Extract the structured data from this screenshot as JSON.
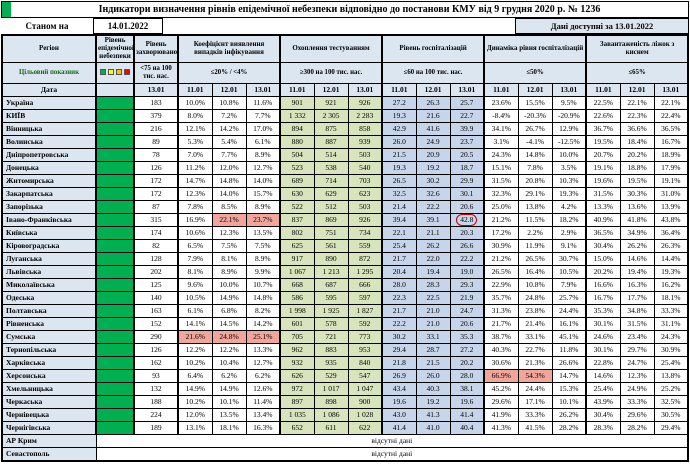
{
  "title": "Індикатори визначення рівнів епідемічної небезпеки відповідно до постанови КМУ від 9 грудня 2020 р. № 1236",
  "meta": {
    "as_of_label": "Станом на",
    "as_of_date": "14.01.2022",
    "available_label": "Дані доступні за 13.01.2022"
  },
  "colors": {
    "header_bg": "#dce6f1",
    "level_green": "#00b050",
    "testing_bg": "#d8e4bc",
    "hosp_bg": "#c7d5ea",
    "red_bg": "#f2a59b",
    "legend": [
      "#00b050",
      "#ffff00",
      "#ffc000",
      "#ff0000"
    ]
  },
  "header": {
    "region_label": "Регіон",
    "level_label": "Рівень епідемічної небезпеки",
    "target_label": "Цільовий показник",
    "date_label": "Дата",
    "groups": [
      {
        "title": "Рівень захворюваності",
        "threshold": "<75 на 100 тис. нас.",
        "dates": [
          "13.01"
        ]
      },
      {
        "title": "Коефіцієнт виявлення випадків інфікування",
        "threshold": "≤20% / <4%",
        "dates": [
          "11.01",
          "12.01",
          "13.01"
        ]
      },
      {
        "title": "Охоплення тестуванням",
        "threshold": "≥300 на 100 тис. нас.",
        "dates": [
          "11.01",
          "12.01",
          "13.01"
        ]
      },
      {
        "title": "Рівень госпіталізацій",
        "threshold": "≤60 на 100 тис. нас.",
        "dates": [
          "11.01",
          "12.01",
          "13.01"
        ]
      },
      {
        "title": "Динаміка рівня госпіталізацій",
        "threshold": "≤50%",
        "dates": [
          "11.01",
          "12.01",
          "13.01"
        ]
      },
      {
        "title": "Завантаженість ліжок з киснем",
        "threshold": "≤65%",
        "dates": [
          "11.01",
          "12.01",
          "13.01"
        ]
      }
    ]
  },
  "no_data_label": "відсутні дані",
  "chart_data": {
    "type": "table",
    "columns": [
      "Регіон",
      "Рівень епідемічної небезпеки",
      "Рівень захворюваності 13.01",
      "Коефіцієнт виявлення 11.01",
      "Коефіцієнт виявлення 12.01",
      "Коефіцієнт виявлення 13.01",
      "Охоплення тестуванням 11.01",
      "Охоплення тестуванням 12.01",
      "Охоплення тестуванням 13.01",
      "Рівень госпіталізацій 11.01",
      "Рівень госпіталізацій 12.01",
      "Рівень госпіталізацій 13.01",
      "Динаміка госпіталізацій 11.01",
      "Динаміка госпіталізацій 12.01",
      "Динаміка госпіталізацій 13.01",
      "Завантаженість ліжок 11.01",
      "Завантаженість ліжок 12.01",
      "Завантаженість ліжок 13.01"
    ],
    "rows": [
      {
        "name": "Україна",
        "level": "green",
        "v": [
          "183",
          "10.0%",
          "10.8%",
          "11.6%",
          "901",
          "921",
          "926",
          "27.2",
          "26.3",
          "25.7",
          "23.6%",
          "15.5%",
          "9.5%",
          "22.5%",
          "22.1%",
          "22.1%"
        ]
      },
      {
        "name": "КИЇВ",
        "level": "green",
        "v": [
          "379",
          "8.0%",
          "7.2%",
          "7.7%",
          "1 332",
          "2 305",
          "2 283",
          "19.3",
          "21.6",
          "22.7",
          "-8.4%",
          "-20.3%",
          "-20.9%",
          "22.6%",
          "22.3%",
          "22.4%"
        ]
      },
      {
        "name": "Вінницька",
        "level": "green",
        "v": [
          "216",
          "12.1%",
          "14.2%",
          "17.0%",
          "894",
          "875",
          "858",
          "42.9",
          "41.6",
          "39.9",
          "34.1%",
          "26.7%",
          "12.9%",
          "36.7%",
          "36.6%",
          "36.5%"
        ]
      },
      {
        "name": "Волинська",
        "level": "green",
        "v": [
          "89",
          "5.3%",
          "5.4%",
          "6.1%",
          "880",
          "887",
          "939",
          "26.0",
          "24.9",
          "23.7",
          "3.1%",
          "-4.1%",
          "-12.5%",
          "19.5%",
          "18.4%",
          "16.7%"
        ]
      },
      {
        "name": "Дніпропетровська",
        "level": "green",
        "v": [
          "78",
          "7.0%",
          "7.7%",
          "8.9%",
          "504",
          "514",
          "503",
          "21.5",
          "20.9",
          "20.5",
          "24.3%",
          "14.8%",
          "10.0%",
          "20.7%",
          "20.2%",
          "18.9%"
        ]
      },
      {
        "name": "Донецька",
        "level": "green",
        "v": [
          "126",
          "11.2%",
          "12.0%",
          "12.7%",
          "523",
          "538",
          "540",
          "19.3",
          "19.2",
          "18.7",
          "15.1%",
          "7.8%",
          "3.5%",
          "19.1%",
          "18.8%",
          "17.9%"
        ]
      },
      {
        "name": "Житомирська",
        "level": "green",
        "v": [
          "172",
          "14.7%",
          "14.8%",
          "14.0%",
          "689",
          "714",
          "703",
          "26.5",
          "30.2",
          "29.9",
          "31.5%",
          "20.8%",
          "10.3%",
          "19.6%",
          "19.5%",
          "19.1%"
        ]
      },
      {
        "name": "Закарпатська",
        "level": "green",
        "v": [
          "172",
          "12.3%",
          "14.0%",
          "15.7%",
          "630",
          "629",
          "623",
          "32.5",
          "32.6",
          "30.1",
          "32.3%",
          "29.1%",
          "19.3%",
          "31.5%",
          "30.3%",
          "31.0%"
        ]
      },
      {
        "name": "Запорізька",
        "level": "green",
        "v": [
          "87",
          "7.8%",
          "8.5%",
          "8.9%",
          "522",
          "512",
          "503",
          "21.4",
          "22.2",
          "20.6",
          "25.0%",
          "13.8%",
          "4.2%",
          "13.3%",
          "13.6%",
          "13.9%"
        ]
      },
      {
        "name": "Івано-Франківська",
        "level": "green",
        "v": [
          "315",
          "16.9%",
          "22.1%",
          "23.7%",
          "837",
          "869",
          "926",
          "39.4",
          "39.1",
          "42.8",
          "21.2%",
          "11.5%",
          "18.2%",
          "40.9%",
          "41.8%",
          "43.8%"
        ],
        "hl": [
          2,
          3
        ],
        "box": [
          9
        ]
      },
      {
        "name": "Київська",
        "level": "green",
        "v": [
          "174",
          "10.6%",
          "12.3%",
          "13.5%",
          "802",
          "751",
          "734",
          "22.1",
          "21.1",
          "20.3",
          "17.2%",
          "2.2%",
          "2.9%",
          "36.5%",
          "34.9%",
          "36.4%"
        ]
      },
      {
        "name": "Кіровоградська",
        "level": "green",
        "v": [
          "82",
          "6.5%",
          "7.5%",
          "7.5%",
          "625",
          "561",
          "559",
          "25.4",
          "26.2",
          "26.6",
          "30.9%",
          "11.9%",
          "9.1%",
          "30.4%",
          "26.2%",
          "26.3%"
        ]
      },
      {
        "name": "Луганська",
        "level": "green",
        "v": [
          "128",
          "7.9%",
          "8.1%",
          "8.9%",
          "917",
          "890",
          "872",
          "21.7",
          "22.0",
          "22.2",
          "21.2%",
          "26.5%",
          "30.7%",
          "15.0%",
          "14.6%",
          "14.4%"
        ]
      },
      {
        "name": "Львівська",
        "level": "green",
        "v": [
          "202",
          "8.1%",
          "8.9%",
          "9.9%",
          "1 067",
          "1 213",
          "1 295",
          "20.4",
          "19.4",
          "19.0",
          "26.5%",
          "16.4%",
          "10.5%",
          "20.2%",
          "19.4%",
          "19.3%"
        ]
      },
      {
        "name": "Миколаївська",
        "level": "green",
        "v": [
          "125",
          "9.6%",
          "10.0%",
          "10.7%",
          "668",
          "687",
          "666",
          "28.0",
          "28.3",
          "29.3",
          "22.9%",
          "10.8%",
          "7.9%",
          "16.6%",
          "16.3%",
          "16.2%"
        ]
      },
      {
        "name": "Одеська",
        "level": "green",
        "v": [
          "140",
          "10.5%",
          "14.9%",
          "14.8%",
          "586",
          "595",
          "597",
          "22.3",
          "22.5",
          "21.9",
          "35.7%",
          "24.8%",
          "25.7%",
          "16.7%",
          "17.7%",
          "18.1%"
        ]
      },
      {
        "name": "Полтавська",
        "level": "green",
        "v": [
          "163",
          "6.1%",
          "6.8%",
          "8.2%",
          "1 998",
          "1 925",
          "1 827",
          "21.7",
          "21.0",
          "24.7",
          "31.3%",
          "23.8%",
          "24.4%",
          "35.3%",
          "34.8%",
          "33.3%"
        ]
      },
      {
        "name": "Рівненська",
        "level": "green",
        "v": [
          "152",
          "14.1%",
          "14.5%",
          "14.2%",
          "601",
          "578",
          "592",
          "22.2",
          "21.0",
          "20.6",
          "21.7%",
          "21.4%",
          "16.1%",
          "30.1%",
          "31.5%",
          "31.1%"
        ]
      },
      {
        "name": "Сумська",
        "level": "green",
        "v": [
          "290",
          "21.6%",
          "24.8%",
          "25.1%",
          "705",
          "721",
          "773",
          "30.2",
          "33.1",
          "35.3",
          "38.7%",
          "33.1%",
          "45.1%",
          "24.6%",
          "23.4%",
          "24.3%"
        ],
        "hl": [
          1,
          2,
          3
        ]
      },
      {
        "name": "Тернопільська",
        "level": "green",
        "v": [
          "126",
          "12.2%",
          "12.2%",
          "13.3%",
          "962",
          "883",
          "953",
          "29.4",
          "28.7",
          "27.2",
          "40.3%",
          "22.7%",
          "11.8%",
          "30.1%",
          "29.7%",
          "30.9%"
        ]
      },
      {
        "name": "Харківська",
        "level": "green",
        "v": [
          "162",
          "10.2%",
          "10.4%",
          "12.7%",
          "932",
          "935",
          "840",
          "21.8",
          "21.5",
          "20.2",
          "30.6%",
          "21.3%",
          "26.6%",
          "22.8%",
          "24.7%",
          "25.4%"
        ]
      },
      {
        "name": "Херсонська",
        "level": "green",
        "v": [
          "93",
          "6.4%",
          "6.2%",
          "6.2%",
          "626",
          "529",
          "547",
          "26.9",
          "26.0",
          "28.0",
          "66.9%",
          "54.3%",
          "14.7%",
          "14.6%",
          "12.3%",
          "13.8%"
        ],
        "hl": [
          10,
          11
        ]
      },
      {
        "name": "Хмельницька",
        "level": "green",
        "v": [
          "132",
          "14.9%",
          "14.9%",
          "12.6%",
          "972",
          "1 017",
          "1 047",
          "43.4",
          "40.3",
          "38.1",
          "45.2%",
          "24.4%",
          "15.3%",
          "25.4%",
          "24.9%",
          "25.2%"
        ]
      },
      {
        "name": "Черкаська",
        "level": "green",
        "v": [
          "188",
          "10.2%",
          "10.1%",
          "11.4%",
          "897",
          "898",
          "900",
          "19.6",
          "19.2",
          "19.6",
          "29.6%",
          "17.1%",
          "10.1%",
          "43.9%",
          "33.3%",
          "32.5%"
        ]
      },
      {
        "name": "Чернівецька",
        "level": "green",
        "v": [
          "224",
          "12.0%",
          "13.5%",
          "13.4%",
          "1 035",
          "1 086",
          "1 028",
          "43.0",
          "41.3",
          "41.4",
          "41.9%",
          "33.3%",
          "26.2%",
          "30.4%",
          "29.6%",
          "30.5%"
        ]
      },
      {
        "name": "Чернігівська",
        "level": "green",
        "v": [
          "189",
          "13.1%",
          "18.1%",
          "16.3%",
          "652",
          "611",
          "622",
          "41.4",
          "41.0",
          "40.4",
          "41.3%",
          "41.5%",
          "28.2%",
          "28.3%",
          "28.2%",
          "29.4%"
        ]
      },
      {
        "name": "АР Крим",
        "nodata": true
      },
      {
        "name": "Севастополь",
        "nodata": true
      }
    ]
  }
}
